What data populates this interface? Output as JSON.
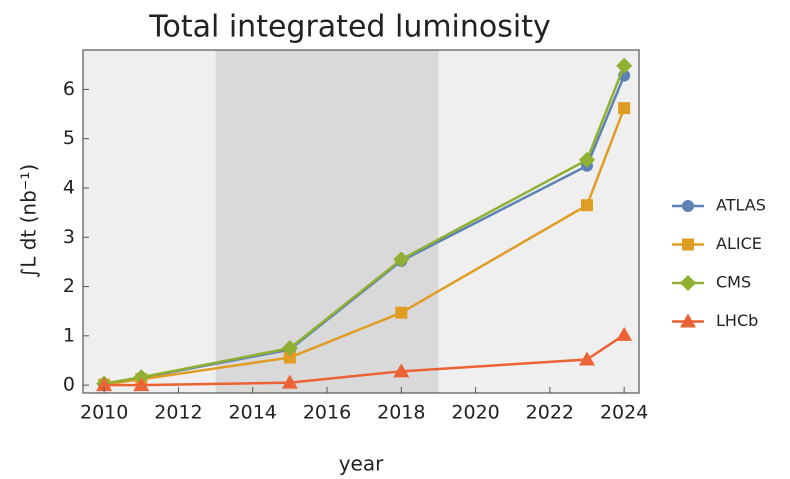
{
  "chart_data": {
    "type": "line",
    "title": "Total integrated luminosity",
    "x_label": "year",
    "y_label": "∫L dt (nb⁻¹)",
    "x": [
      2010,
      2011,
      2015,
      2018,
      2023,
      2024
    ],
    "series": [
      {
        "name": "ATLAS",
        "color": "#5e81b5",
        "marker": "circle",
        "values": [
          0.02,
          0.15,
          0.72,
          2.52,
          4.45,
          6.28
        ]
      },
      {
        "name": "ALICE",
        "color": "#e19c24",
        "marker": "square",
        "values": [
          0.01,
          0.12,
          0.56,
          1.47,
          3.65,
          5.62
        ]
      },
      {
        "name": "CMS",
        "color": "#8fb032",
        "marker": "diamond",
        "values": [
          0.03,
          0.16,
          0.75,
          2.55,
          4.57,
          6.48
        ]
      },
      {
        "name": "LHCb",
        "color": "#eb6235",
        "marker": "triangle",
        "values": [
          0,
          0,
          0.05,
          0.28,
          0.52,
          1.02
        ]
      }
    ],
    "shaded_ranges": [
      [
        2013,
        2019
      ]
    ],
    "xlim": [
      2009.43,
      2024.4
    ],
    "xticks": [
      2010,
      2012,
      2014,
      2016,
      2018,
      2020,
      2022,
      2024
    ],
    "ylim": [
      -0.16,
      6.8
    ],
    "yticks": [
      0,
      1,
      2,
      3,
      4,
      5,
      6
    ],
    "legend": "right"
  }
}
